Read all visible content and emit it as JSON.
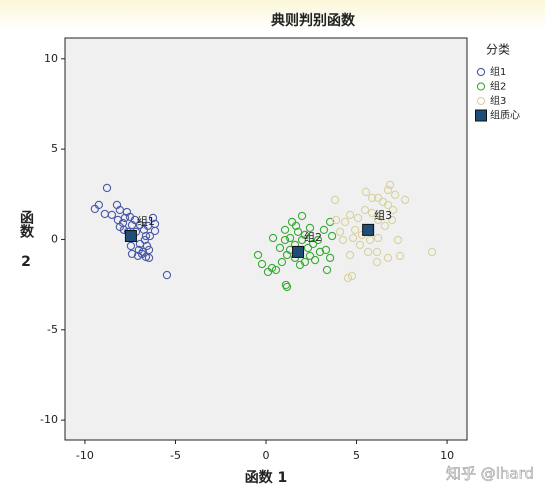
{
  "chart_data": {
    "type": "scatter",
    "title": "典则判别函数",
    "x_label": "函数 1",
    "y_label": "函数 2",
    "legend_title": "分类",
    "legend_position": "right",
    "watermark": "知乎 @lhard",
    "xlim": [
      -11.1,
      11.1
    ],
    "ylim": [
      -11.1,
      11.15
    ],
    "xticks": [
      -10,
      -5,
      0,
      5,
      10
    ],
    "yticks": [
      -10,
      -5,
      0,
      5,
      10
    ],
    "grid": false,
    "series": [
      {
        "name": "组1",
        "color": "#4a5aa8",
        "marker": "circle",
        "x": [
          -8.78,
          -9.23,
          -9.45,
          -8.9,
          -8.23,
          -8.51,
          -8.07,
          -7.79,
          -7.9,
          -7.68,
          -7.51,
          -7.4,
          -7.24,
          -6.96,
          -6.74,
          -6.52,
          -6.24,
          -6.13,
          -6.41,
          -6.69,
          -6.96,
          -6.57,
          -6.46,
          -7.02,
          -7.4,
          -7.46,
          -6.8,
          -7.07,
          -6.63,
          -6.46,
          -6.85,
          -7.85,
          -8.07,
          -5.47,
          -6.13,
          -7.62,
          -7.18,
          -8.18,
          -6.63
        ],
        "y": [
          2.85,
          1.91,
          1.69,
          1.41,
          1.91,
          1.36,
          1.63,
          1.19,
          0.91,
          1.52,
          1.25,
          0.8,
          1.08,
          0.8,
          0.53,
          0.75,
          1.19,
          0.47,
          0.19,
          -0.03,
          -0.25,
          -0.36,
          -0.58,
          -0.58,
          -0.8,
          -0.36,
          -0.69,
          -0.91,
          -0.97,
          -1.02,
          -0.8,
          0.53,
          0.69,
          -1.97,
          0.86,
          0.42,
          0.42,
          1.08,
          0.19
        ]
      },
      {
        "name": "组2",
        "color": "#3aaa35",
        "marker": "circle",
        "x": [
          1.99,
          1.44,
          1.05,
          0.39,
          1.33,
          1.77,
          2.15,
          2.43,
          2.87,
          3.2,
          3.54,
          3.65,
          3.31,
          3.54,
          3.37,
          2.71,
          2.43,
          2.15,
          1.88,
          1.6,
          1.16,
          0.88,
          0.33,
          0.11,
          0.55,
          -0.44,
          -0.22,
          1.16,
          1.1,
          1.33,
          0.77,
          1.6,
          2.32,
          1.99,
          1.66,
          1.05,
          2.6,
          2.98
        ],
        "y": [
          1.3,
          0.97,
          0.53,
          0.08,
          0.08,
          0.42,
          0.25,
          0.64,
          -0.03,
          0.53,
          0.97,
          0.19,
          -0.58,
          -1.02,
          -1.69,
          -1.14,
          -0.91,
          -1.25,
          -1.41,
          -1.02,
          -0.86,
          -1.25,
          -1.58,
          -1.8,
          -1.69,
          -0.86,
          -1.36,
          -2.63,
          -2.52,
          -0.58,
          -0.47,
          -0.3,
          -0.47,
          -0.03,
          0.75,
          -0.03,
          -0.25,
          -0.69
        ]
      },
      {
        "name": "组3",
        "color": "#d8d2a0",
        "marker": "circle",
        "x": [
          6.74,
          6.19,
          6.74,
          6.3,
          5.86,
          5.47,
          5.08,
          4.64,
          4.36,
          4.09,
          3.87,
          4.92,
          5.3,
          5.75,
          6.19,
          6.57,
          6.96,
          7.29,
          7.68,
          7.13,
          6.85,
          5.86,
          6.46,
          5.52,
          3.81,
          5.19,
          4.64,
          4.53,
          4.75,
          6.13,
          6.13,
          5.64,
          6.74,
          7.4,
          9.17,
          4.25,
          4.81,
          6.19,
          7.02
        ],
        "y": [
          2.74,
          2.3,
          1.91,
          1.36,
          1.47,
          1.63,
          1.19,
          1.36,
          0.97,
          0.42,
          1.08,
          0.53,
          0.25,
          -0.03,
          0.08,
          0.75,
          1.08,
          -0.03,
          2.19,
          2.47,
          3.02,
          2.3,
          2.08,
          2.63,
          2.19,
          -0.3,
          -0.86,
          -2.13,
          -2.02,
          -1.25,
          -0.69,
          -0.69,
          -1.02,
          -0.91,
          -0.69,
          -0.03,
          0.08,
          1.08,
          1.63
        ]
      },
      {
        "name": "组质心",
        "color": "#1f4e79",
        "marker": "square",
        "x": [
          -7.46,
          1.77,
          5.64
        ],
        "y": [
          0.19,
          -0.69,
          0.53
        ]
      }
    ]
  }
}
